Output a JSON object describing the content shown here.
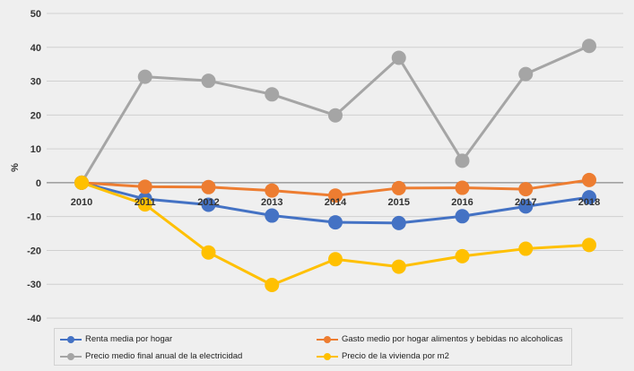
{
  "chart_data": {
    "type": "line",
    "ylabel": "%",
    "ylim": [
      -40,
      50
    ],
    "yticks": [
      "50",
      "40",
      "30",
      "20",
      "10",
      "0",
      "-10",
      "-20",
      "-30",
      "-40"
    ],
    "categories": [
      "2010",
      "2011",
      "2012",
      "2013",
      "2014",
      "2015",
      "2016",
      "2017",
      "2018"
    ],
    "grid": true,
    "legend_position": "bottom",
    "series": [
      {
        "name": "Renta media por hogar",
        "color": "#4472c4",
        "values": [
          0,
          -4.8,
          -6.5,
          -9.7,
          -11.7,
          -11.9,
          -9.9,
          -7.0,
          -4.3
        ]
      },
      {
        "name": "Gasto medio por hogar alimentos y bebidas no alcoholicas",
        "color": "#ed7d31",
        "values": [
          0,
          -1.2,
          -1.3,
          -2.3,
          -3.8,
          -1.6,
          -1.5,
          -1.9,
          0.8
        ]
      },
      {
        "name": "Precio medio final anual de la electricidad",
        "color": "#a5a5a5",
        "values": [
          0,
          31.3,
          30.1,
          26.1,
          19.9,
          36.9,
          6.5,
          32.1,
          40.4
        ]
      },
      {
        "name": "Precio de la vivienda por m2",
        "color": "#ffc000",
        "values": [
          0,
          -6.4,
          -20.6,
          -30.2,
          -22.6,
          -24.8,
          -21.7,
          -19.5,
          -18.4
        ]
      }
    ]
  }
}
